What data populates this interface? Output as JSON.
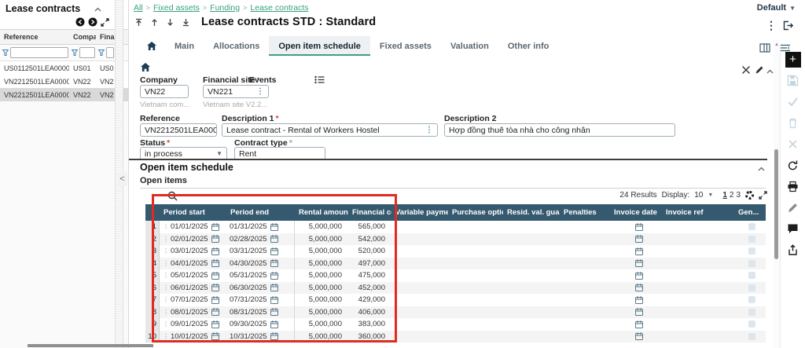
{
  "left_panel": {
    "title": "Lease contracts",
    "columns": [
      "Reference",
      "Company",
      "Fina"
    ],
    "rows": [
      [
        "US0112501LEA000001",
        "US01",
        "US0"
      ],
      [
        "VN2212501LEA000001",
        "VN22",
        "VN2"
      ],
      [
        "VN2212501LEA000002",
        "VN22",
        "VN2"
      ]
    ],
    "selected_row": 2
  },
  "breadcrumb": [
    "All",
    "Fixed assets",
    "Funding",
    "Lease contracts"
  ],
  "top": {
    "profile": "Default",
    "title": "Lease contracts STD : Standard"
  },
  "tabs": {
    "items": [
      "Main",
      "Allocations",
      "Open item schedule",
      "Fixed assets",
      "Valuation",
      "Other info"
    ],
    "active": "Open item schedule"
  },
  "form": {
    "company": {
      "label": "Company",
      "value": "VN22",
      "helper": "Vietnam com..."
    },
    "financial_site": {
      "label": "Financial site",
      "value": "VN221",
      "helper": "Vietnam site V2.2..."
    },
    "events": {
      "label": "Events"
    },
    "reference": {
      "label": "Reference",
      "value": "VN2212501LEA000002"
    },
    "description1": {
      "label": "Description 1",
      "value": "Lease contract - Rental of Workers Hostel"
    },
    "description2": {
      "label": "Description 2",
      "value": "Hợp đồng thuê tòa nhà cho công nhân"
    },
    "status": {
      "label": "Status",
      "value": "in process"
    },
    "contract_type": {
      "label": "Contract type",
      "value": "Rent"
    }
  },
  "section": {
    "title": "Open item schedule",
    "subtitle": "Open items"
  },
  "grid": {
    "results": "24 Results",
    "display_label": "Display:",
    "display_value": "10",
    "pages": [
      "1",
      "2",
      "3"
    ],
    "active_page": "1",
    "columns": [
      "",
      "Period start",
      "Period end",
      "Rental amount",
      "Financial cost",
      "Variable payments",
      "Purchase option ...",
      "Resid. val. guara...",
      "Penalties",
      "Invoice date",
      "Invoice ref",
      "Gen..."
    ],
    "rows": [
      {
        "n": "1",
        "start": "01/01/2025",
        "end": "01/31/2025",
        "rental": "5,000,000",
        "cost": "565,000"
      },
      {
        "n": "2",
        "start": "02/01/2025",
        "end": "02/28/2025",
        "rental": "5,000,000",
        "cost": "542,000"
      },
      {
        "n": "3",
        "start": "03/01/2025",
        "end": "03/31/2025",
        "rental": "5,000,000",
        "cost": "520,000"
      },
      {
        "n": "4",
        "start": "04/01/2025",
        "end": "04/30/2025",
        "rental": "5,000,000",
        "cost": "497,000"
      },
      {
        "n": "5",
        "start": "05/01/2025",
        "end": "05/31/2025",
        "rental": "5,000,000",
        "cost": "475,000"
      },
      {
        "n": "6",
        "start": "06/01/2025",
        "end": "06/30/2025",
        "rental": "5,000,000",
        "cost": "452,000"
      },
      {
        "n": "7",
        "start": "07/01/2025",
        "end": "07/31/2025",
        "rental": "5,000,000",
        "cost": "429,000"
      },
      {
        "n": "8",
        "start": "08/01/2025",
        "end": "08/31/2025",
        "rental": "5,000,000",
        "cost": "406,000"
      },
      {
        "n": "9",
        "start": "09/01/2025",
        "end": "09/30/2025",
        "rental": "5,000,000",
        "cost": "383,000"
      },
      {
        "n": "10",
        "start": "10/01/2025",
        "end": "10/31/2025",
        "rental": "5,000,000",
        "cost": "360,000"
      }
    ]
  },
  "toolbar_icons": [
    "add",
    "save",
    "confirm",
    "delete",
    "cancel",
    "refresh",
    "print",
    "edit",
    "comment",
    "share"
  ],
  "toolbar_disabled": [
    "save",
    "confirm",
    "delete",
    "cancel"
  ],
  "colors": {
    "accent_green": "#3aa17e",
    "grid_header": "#35596e",
    "annotation_red": "#e02b20"
  }
}
